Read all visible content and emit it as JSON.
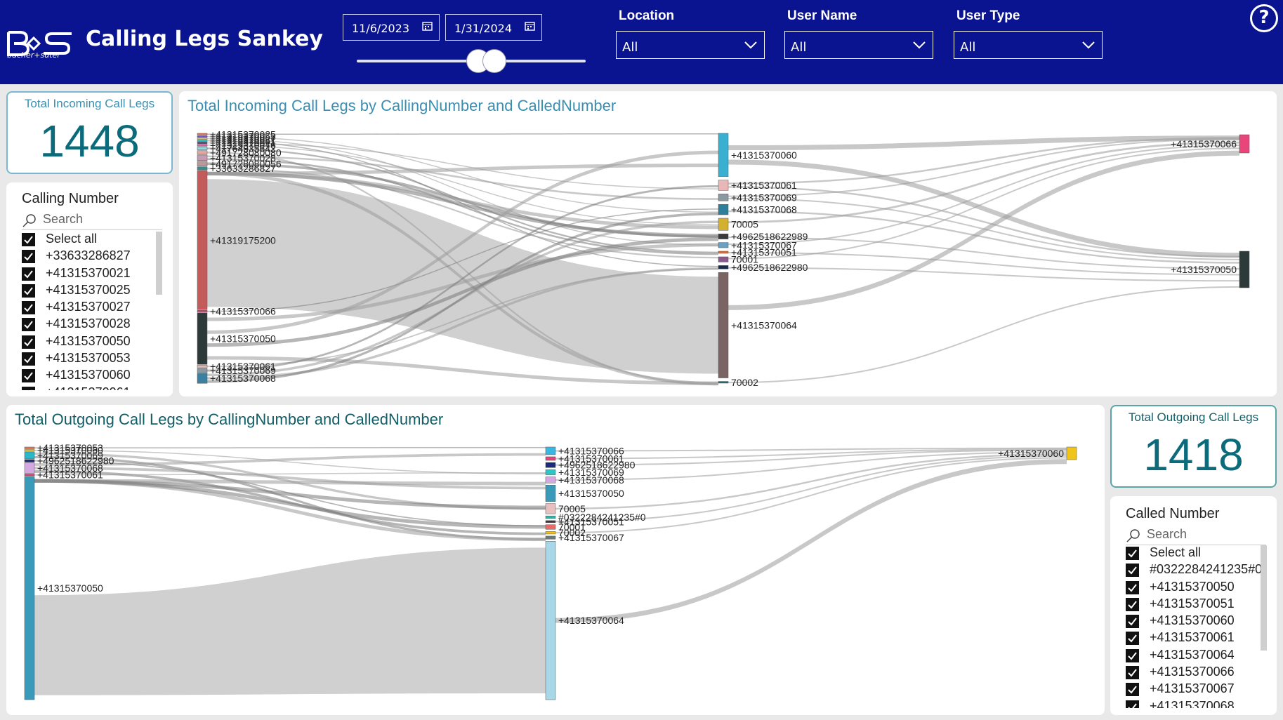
{
  "app": {
    "title": "Calling Legs Sankey",
    "logo_text": "bucher+suter"
  },
  "date_filter": {
    "start": "11/6/2023",
    "end": "1/31/2024",
    "range_fraction": [
      0.53,
      0.6
    ]
  },
  "filters": [
    {
      "label": "Location",
      "value": "All"
    },
    {
      "label": "User Name",
      "value": "All"
    },
    {
      "label": "User Type",
      "value": "All"
    }
  ],
  "help_icon": "?",
  "incoming_card": {
    "title": "Total Incoming Call Legs",
    "value": "1448"
  },
  "outgoing_card": {
    "title": "Total Outgoing Call Legs",
    "value": "1418"
  },
  "calling_slicer": {
    "title": "Calling Number",
    "search_placeholder": "Search",
    "items": [
      "Select all",
      "+33633286827",
      "+41315370021",
      "+41315370025",
      "+41315370027",
      "+41315370028",
      "+41315370050",
      "+41315370053",
      "+41315370060",
      "+41315370061"
    ]
  },
  "called_slicer": {
    "title": "Called Number",
    "search_placeholder": "Search",
    "items": [
      "Select all",
      "#0322284241235#0",
      "+41315370050",
      "+41315370051",
      "+41315370060",
      "+41315370061",
      "+41315370064",
      "+41315370066",
      "+41315370067",
      "+41315370068"
    ]
  },
  "colors": {
    "header": "#0a1490",
    "card_value": "#0c6b7a",
    "incoming_title": "#3a8fb0",
    "outgoing_title": "#125e66",
    "link": "#9a9a9a",
    "big_link": "#c8c8c8"
  },
  "incoming_sankey": {
    "title": "Total Incoming Call Legs by CallingNumber and CalledNumber",
    "source_nodes": [
      {
        "label": "+41315370025",
        "value": 8,
        "color": "#e8745c"
      },
      {
        "label": "+41315370053",
        "value": 6,
        "color": "#6a5acd"
      },
      {
        "label": "+41315370027",
        "value": 6,
        "color": "#f0c419"
      },
      {
        "label": "+41315370051",
        "value": 6,
        "color": "#2ab7ca"
      },
      {
        "label": "+41315370021",
        "value": 6,
        "color": "#1a2b7a"
      },
      {
        "label": "+41315370076",
        "value": 8,
        "color": "#e05fa0"
      },
      {
        "label": "+41764935642",
        "value": 14,
        "color": "#9bd3e0"
      },
      {
        "label": "+491728080080",
        "value": 16,
        "color": "#e8a39c"
      },
      {
        "label": "+41315370028",
        "value": 24,
        "color": "#c79bb4"
      },
      {
        "label": "+491728080056",
        "value": 22,
        "color": "#b89a9a"
      },
      {
        "label": "+33633286827",
        "value": 14,
        "color": "#3a8b8b"
      },
      {
        "label": "+41319175200",
        "value": 610,
        "color": "#c45b5b"
      },
      {
        "label": "+41315370066",
        "value": 8,
        "color": "#e0457b"
      },
      {
        "label": "+41315370050",
        "value": 226,
        "color": "#2c3a3a"
      },
      {
        "label": "+41315370061",
        "value": 12,
        "color": "#e4b7b7"
      },
      {
        "label": "+41315370069",
        "value": 18,
        "color": "#8a9aa0"
      },
      {
        "label": "+41315370068",
        "value": 44,
        "color": "#3a80a0"
      }
    ],
    "middle_nodes": [
      {
        "label": "+41315370060",
        "value": 250,
        "color": "#3ab0d0"
      },
      {
        "label": "+41315370061",
        "value": 60,
        "color": "#e8b8b8"
      },
      {
        "label": "+41315370069",
        "value": 40,
        "color": "#8a9aa0"
      },
      {
        "label": "+41315370068",
        "value": 60,
        "color": "#2f7e9a"
      },
      {
        "label": "70005",
        "value": 70,
        "color": "#d4b030"
      },
      {
        "label": "+4962518622989",
        "value": 30,
        "color": "#3a3a3a"
      },
      {
        "label": "+41315370067",
        "value": 30,
        "color": "#6aa0c0"
      },
      {
        "label": "+41315370051",
        "value": 12,
        "color": "#e86a30"
      },
      {
        "label": "70001",
        "value": 30,
        "color": "#8a5a8a"
      },
      {
        "label": "+4962518622980",
        "value": 20,
        "color": "#1a2b4a"
      },
      {
        "label": "+41315370064",
        "value": 610,
        "color": "#7a6464"
      },
      {
        "label": "70002",
        "value": 10,
        "color": "#2a6a6a"
      }
    ],
    "target_nodes": [
      {
        "label": "+41315370066",
        "value": 60,
        "color": "#e8457b"
      },
      {
        "label": "+41315370050",
        "value": 230,
        "color": "#2c3a3a"
      }
    ],
    "major_flow": {
      "source": "+41319175200",
      "target": "+41315370064"
    }
  },
  "outgoing_sankey": {
    "title": "Total Outgoing Call Legs by CallingNumber and CalledNumber",
    "source_nodes": [
      {
        "label": "+41315370053",
        "value": 10,
        "color": "#e8745c"
      },
      {
        "label": "+41315370060",
        "value": 10,
        "color": "#f0c419"
      },
      {
        "label": "+41315370069",
        "value": 40,
        "color": "#2ab7ca"
      },
      {
        "label": "+4962518622980",
        "value": 14,
        "color": "#1a2b7a"
      },
      {
        "label": "+41315370068",
        "value": 60,
        "color": "#d4a8e0"
      },
      {
        "label": "+41315370061",
        "value": 10,
        "color": "#e0457b"
      },
      {
        "label": "+41315370050",
        "value": 1274,
        "color": "#3a9aba"
      }
    ],
    "middle_nodes": [
      {
        "label": "+41315370066",
        "value": 30,
        "color": "#3ab7e0"
      },
      {
        "label": "+41315370061",
        "value": 14,
        "color": "#e0457b"
      },
      {
        "label": "+4962518622980",
        "value": 20,
        "color": "#1a2b7a"
      },
      {
        "label": "+41315370069",
        "value": 20,
        "color": "#2ac7c7"
      },
      {
        "label": "+41315370068",
        "value": 24,
        "color": "#d4a8e0"
      },
      {
        "label": "+41315370050",
        "value": 64,
        "color": "#3a9aba"
      },
      {
        "label": "70005",
        "value": 40,
        "color": "#e8c0c0"
      },
      {
        "label": "#0322284241235#0",
        "value": 10,
        "color": "#2ab7a7"
      },
      {
        "label": "+41315370051",
        "value": 8,
        "color": "#3a3a3a"
      },
      {
        "label": "70001",
        "value": 18,
        "color": "#e86a6a"
      },
      {
        "label": "70002",
        "value": 10,
        "color": "#f0c419"
      },
      {
        "label": "+41315370067",
        "value": 12,
        "color": "#6a7a7a"
      },
      {
        "label": "+41315370064",
        "value": 620,
        "color": "#a8d8e8"
      }
    ],
    "target_nodes": [
      {
        "label": "+41315370060",
        "value": 40,
        "color": "#f0c419"
      }
    ],
    "major_flow": {
      "source": "+41315370050",
      "target": "+41315370064"
    }
  }
}
